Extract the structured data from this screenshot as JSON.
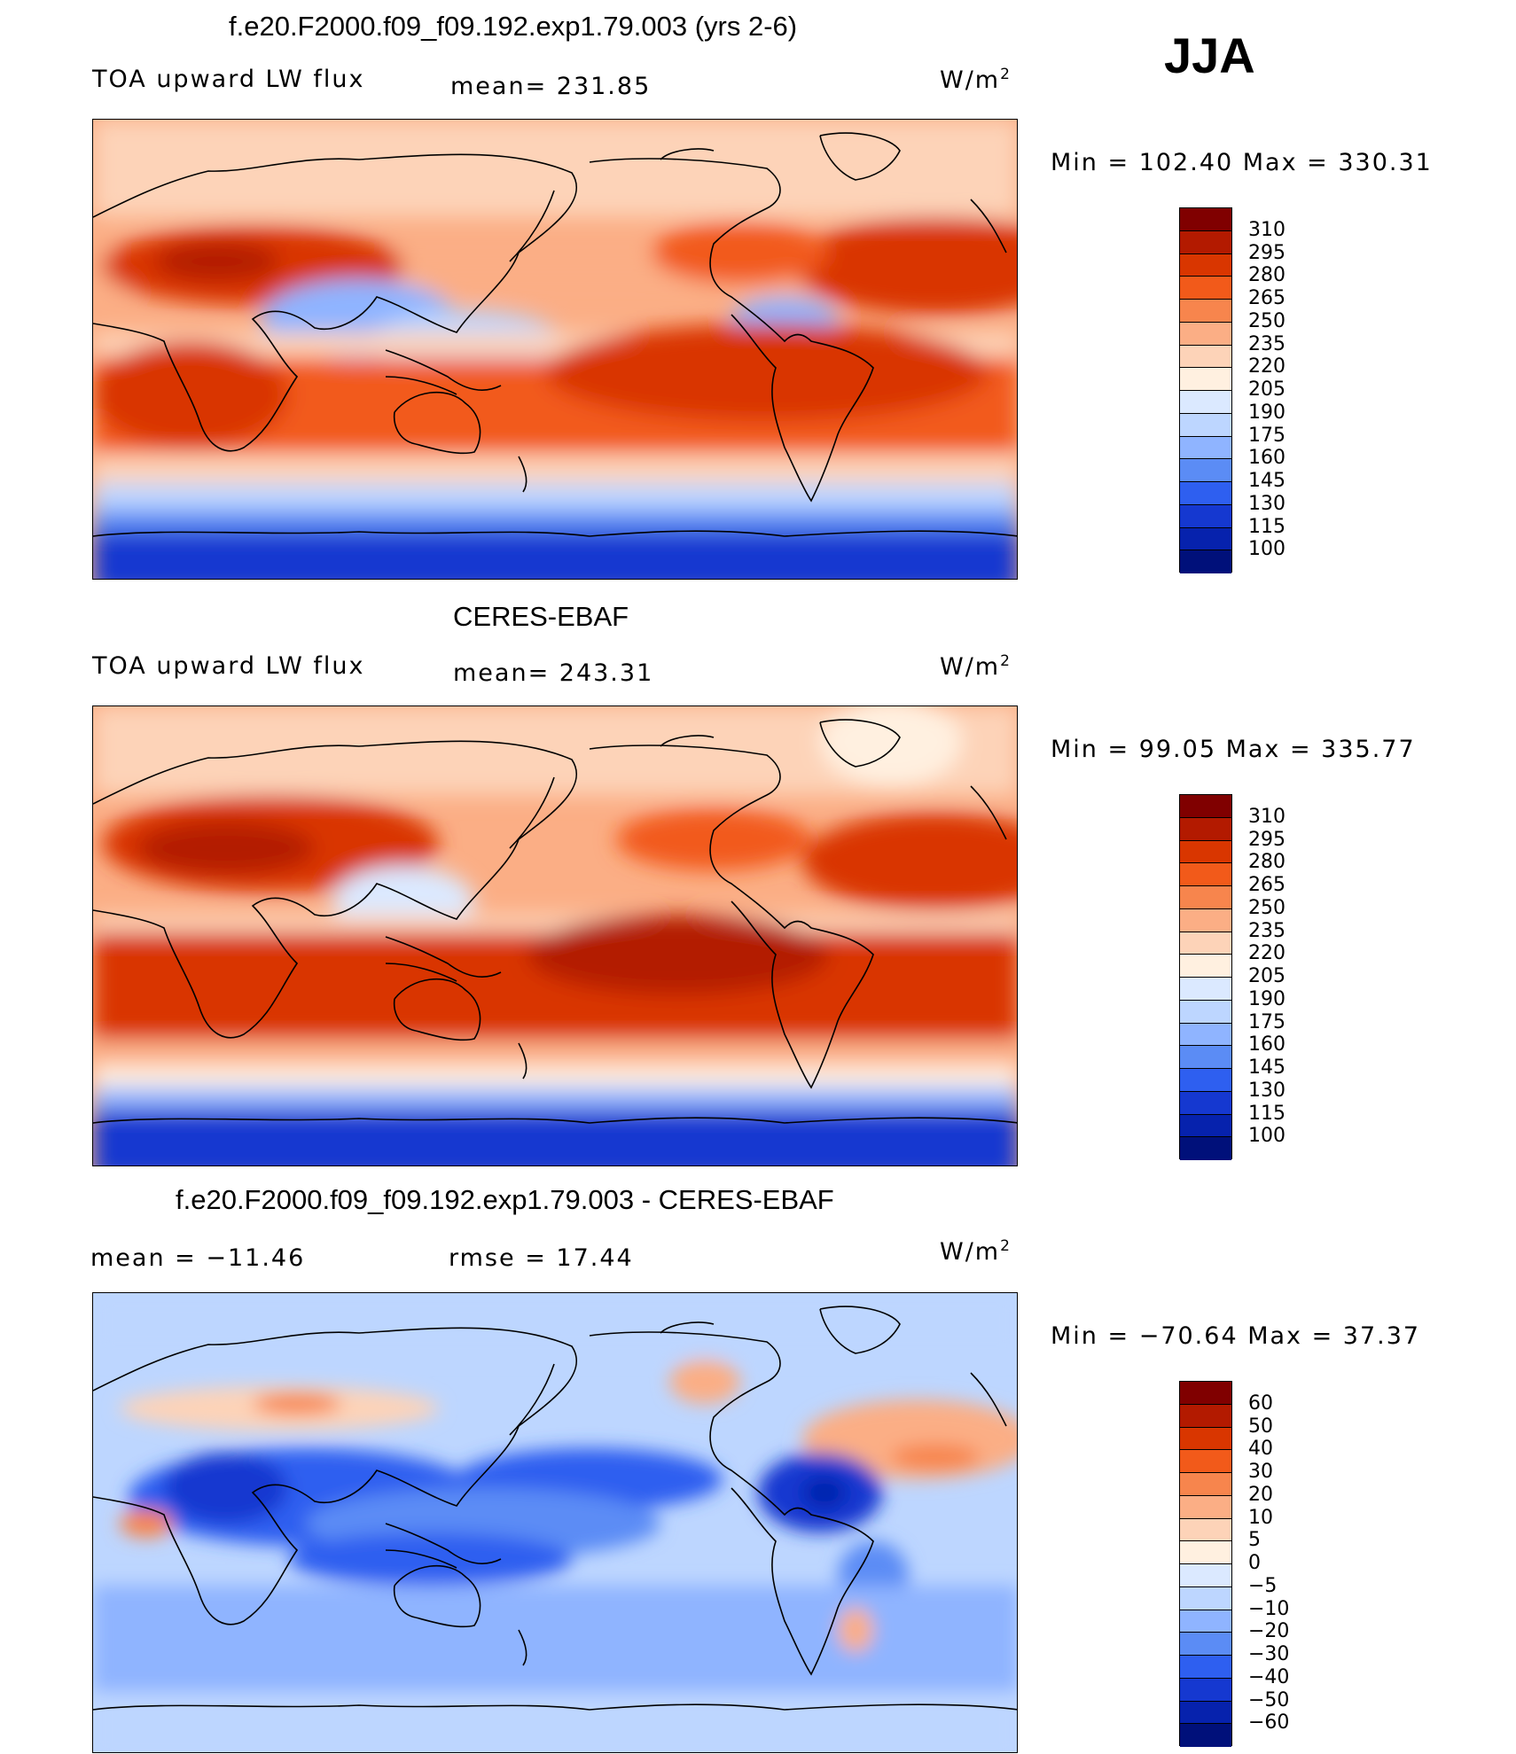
{
  "season": "JJA",
  "panels": [
    {
      "id": "model",
      "title": "f.e20.F2000.f09_f09.192.exp1.79.003 (yrs 2-6)",
      "left_label": "TOA upward LW flux",
      "stat_label": "mean= 231.85",
      "units": "W/m",
      "units_exp": "2",
      "minmax": "Min  =  102.40  Max  =  330.31",
      "colorbar_labels": [
        "310",
        "295",
        "280",
        "265",
        "250",
        "235",
        "220",
        "205",
        "190",
        "175",
        "160",
        "145",
        "130",
        "115",
        "100"
      ]
    },
    {
      "id": "obs",
      "title": "CERES-EBAF",
      "left_label": "TOA upward LW flux",
      "stat_label": "mean= 243.31",
      "units": "W/m",
      "units_exp": "2",
      "minmax": "Min  =   99.05  Max  =  335.77",
      "colorbar_labels": [
        "310",
        "295",
        "280",
        "265",
        "250",
        "235",
        "220",
        "205",
        "190",
        "175",
        "160",
        "145",
        "130",
        "115",
        "100"
      ]
    },
    {
      "id": "diff",
      "title": "f.e20.F2000.f09_f09.192.exp1.79.003 - CERES-EBAF",
      "left_label": "mean  =  −11.46",
      "stat_label": "rmse  =    17.44",
      "units": "W/m",
      "units_exp": "2",
      "minmax": "Min  =  −70.64  Max  =    37.37",
      "colorbar_labels": [
        "60",
        "50",
        "40",
        "30",
        "20",
        "10",
        "5",
        "0",
        "−5",
        "−10",
        "−20",
        "−30",
        "−40",
        "−50",
        "−60"
      ]
    }
  ],
  "colors": {
    "abs_scale": [
      "#800000",
      "#b31a00",
      "#d93600",
      "#f25a1a",
      "#f7854d",
      "#fbae85",
      "#fdd3b8",
      "#fff0e0",
      "#dbe9ff",
      "#bdd6ff",
      "#8fb4ff",
      "#5b8cf5",
      "#2e5ff0",
      "#1538d0",
      "#0622ad",
      "#00107a"
    ],
    "diff_scale": [
      "#800000",
      "#b31a00",
      "#d93600",
      "#f25a1a",
      "#f7854d",
      "#fbae85",
      "#fdd3b8",
      "#fff0e0",
      "#dbe9ff",
      "#bdd6ff",
      "#8fb4ff",
      "#5b8cf5",
      "#2e5ff0",
      "#1538d0",
      "#0622ad",
      "#00107a"
    ]
  }
}
